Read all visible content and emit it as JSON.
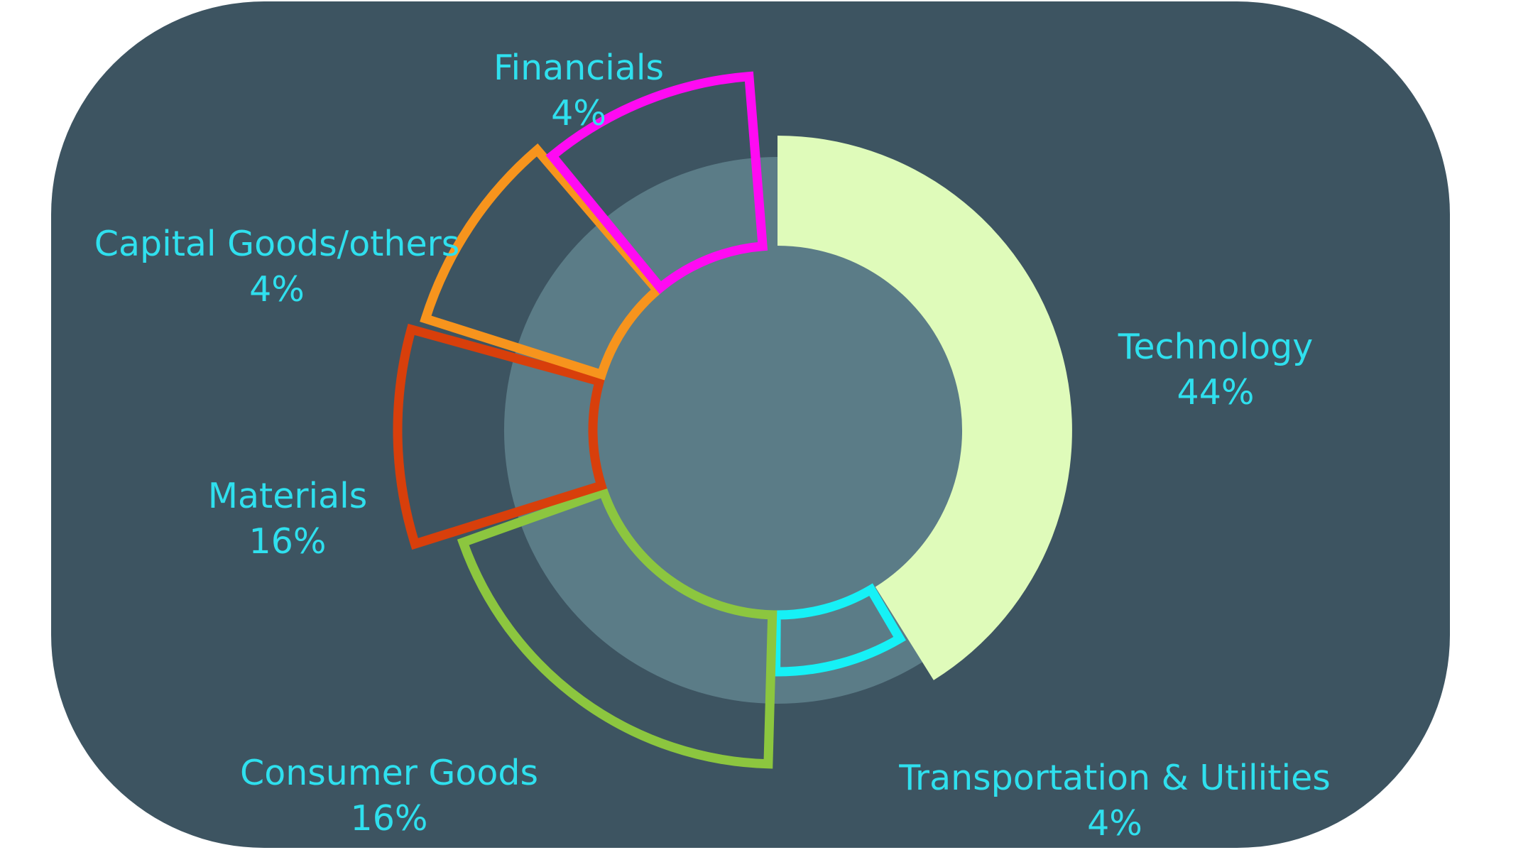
{
  "chart_data": {
    "type": "pie",
    "variant": "exploded-donut",
    "title": "",
    "slices": [
      {
        "label": "Technology",
        "value_label": "44%",
        "value": 44,
        "color": "#dffbba",
        "style": "filled"
      },
      {
        "label": "Transportation & Utilities",
        "value_label": "4%",
        "value": 4,
        "color": "#16f1f6",
        "style": "outline"
      },
      {
        "label": "Consumer Goods",
        "value_label": "16%",
        "value": 16,
        "color": "#8cc63f",
        "style": "outline"
      },
      {
        "label": "Materials",
        "value_label": "16%",
        "value": 16,
        "color": "#d83f0b",
        "style": "outline"
      },
      {
        "label": "Capital Goods/others",
        "value_label": "4%",
        "value": 4,
        "color": "#f7941d",
        "style": "outline"
      },
      {
        "label": "Financials",
        "value_label": "4%",
        "value": 4,
        "color": "#ff0af2",
        "style": "outline"
      }
    ],
    "colors": {
      "panel": "#3d5461",
      "ring": "#5b7c87",
      "label": "#2fe0ee"
    }
  }
}
